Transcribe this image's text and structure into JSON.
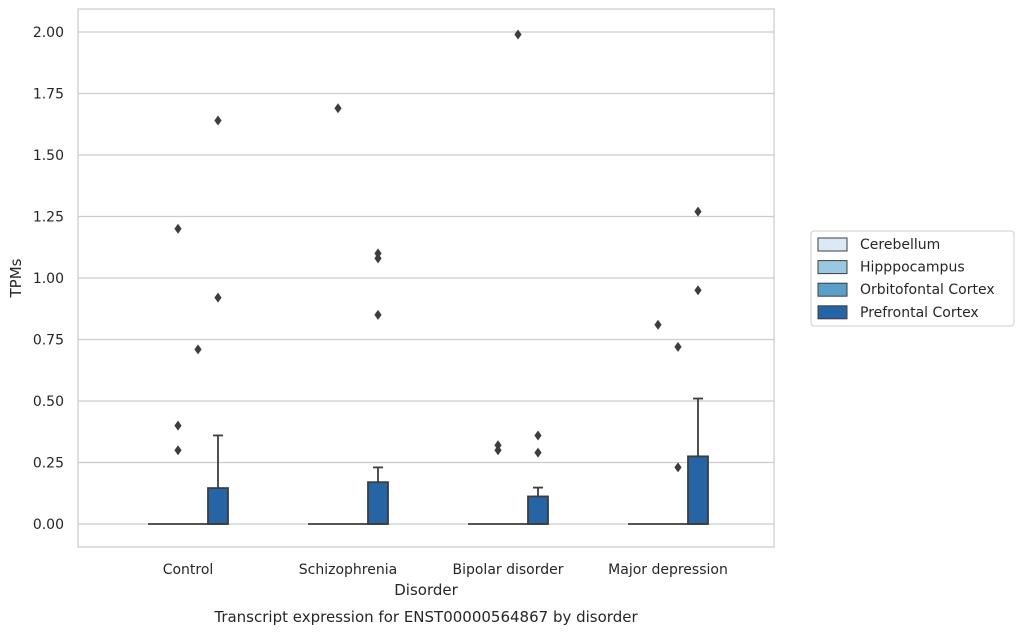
{
  "chart_data": {
    "type": "box",
    "title": "",
    "caption": "Transcript expression for ENST00000564867 by disorder",
    "xlabel": "Disorder",
    "ylabel": "TPMs",
    "ylim": [
      -0.1,
      2.09
    ],
    "yticks": [
      0.0,
      0.25,
      0.5,
      0.75,
      1.0,
      1.25,
      1.5,
      1.75,
      2.0
    ],
    "ytick_labels": [
      "0.00",
      "0.25",
      "0.50",
      "0.75",
      "1.00",
      "1.25",
      "1.50",
      "1.75",
      "2.00"
    ],
    "grid": "horizontal",
    "legend_position": "right",
    "categories": [
      "Control",
      "Schizophrenia",
      "Bipolar disorder",
      "Major depression"
    ],
    "series": [
      {
        "name": "Cerebellum",
        "color": "#dbe9f6",
        "boxes": [
          {
            "q1": 0,
            "median": 0,
            "q3": 0,
            "whisker_low": 0,
            "whisker_high": 0,
            "outliers": []
          },
          {
            "q1": 0,
            "median": 0,
            "q3": 0,
            "whisker_low": 0,
            "whisker_high": 0,
            "outliers": []
          },
          {
            "q1": 0,
            "median": 0,
            "q3": 0,
            "whisker_low": 0,
            "whisker_high": 0,
            "outliers": []
          },
          {
            "q1": 0,
            "median": 0,
            "q3": 0,
            "whisker_low": 0,
            "whisker_high": 0,
            "outliers": []
          }
        ]
      },
      {
        "name": "Hipppocampus",
        "color": "#9ac8e0",
        "boxes": [
          {
            "q1": 0,
            "median": 0,
            "q3": 0,
            "whisker_low": 0,
            "whisker_high": 0,
            "outliers": [
              0.3,
              0.4,
              1.2
            ]
          },
          {
            "q1": 0,
            "median": 0,
            "q3": 0,
            "whisker_low": 0,
            "whisker_high": 0,
            "outliers": [
              1.69
            ]
          },
          {
            "q1": 0,
            "median": 0,
            "q3": 0,
            "whisker_low": 0,
            "whisker_high": 0,
            "outliers": [
              0.3,
              0.32
            ]
          },
          {
            "q1": 0,
            "median": 0,
            "q3": 0,
            "whisker_low": 0,
            "whisker_high": 0,
            "outliers": [
              0.81
            ]
          }
        ]
      },
      {
        "name": "Orbitofontal Cortex",
        "color": "#5a9fc9",
        "boxes": [
          {
            "q1": 0,
            "median": 0,
            "q3": 0,
            "whisker_low": 0,
            "whisker_high": 0,
            "outliers": [
              0.71
            ]
          },
          {
            "q1": 0,
            "median": 0,
            "q3": 0,
            "whisker_low": 0,
            "whisker_high": 0,
            "outliers": []
          },
          {
            "q1": 0,
            "median": 0,
            "q3": 0,
            "whisker_low": 0,
            "whisker_high": 0,
            "outliers": [
              1.99
            ]
          },
          {
            "q1": 0,
            "median": 0,
            "q3": 0,
            "whisker_low": 0,
            "whisker_high": 0,
            "outliers": [
              0.23,
              0.72
            ]
          }
        ]
      },
      {
        "name": "Prefrontal Cortex",
        "color": "#2565a6",
        "boxes": [
          {
            "q1": 0,
            "median": 0,
            "q3": 0.146,
            "whisker_low": 0,
            "whisker_high": 0.36,
            "outliers": [
              0.92,
              1.64
            ]
          },
          {
            "q1": 0,
            "median": 0,
            "q3": 0.17,
            "whisker_low": 0,
            "whisker_high": 0.23,
            "outliers": [
              0.85,
              1.08,
              1.1
            ]
          },
          {
            "q1": 0,
            "median": 0,
            "q3": 0.112,
            "whisker_low": 0,
            "whisker_high": 0.148,
            "outliers": [
              0.29,
              0.36
            ]
          },
          {
            "q1": 0,
            "median": 0,
            "q3": 0.275,
            "whisker_low": 0,
            "whisker_high": 0.51,
            "outliers": [
              0.95,
              1.27
            ]
          }
        ]
      }
    ]
  }
}
